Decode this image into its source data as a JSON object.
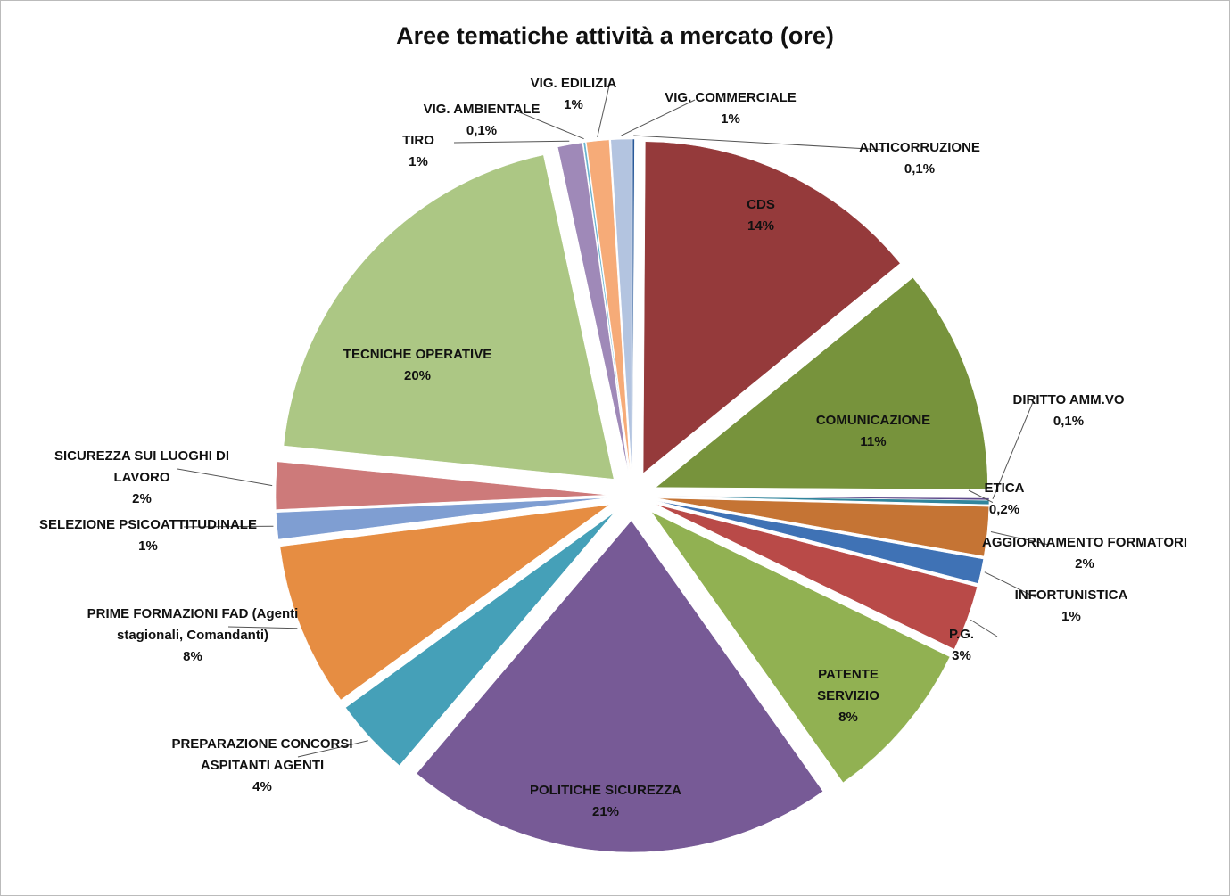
{
  "chart_data": {
    "type": "pie",
    "title": "Aree tematiche attività a mercato (ore)",
    "categories": [
      "ANTICORRUZIONE",
      "CDS",
      "COMUNICAZIONE",
      "DIRITTO AMM.VO",
      "ETICA",
      "AGGIORNAMENTO FORMATORI",
      "INFORTUNISTICA",
      "P.G.",
      "PATENTE SERVIZIO",
      "POLITICHE SICUREZZA",
      "PREPARAZIONE CONCORSI ASPITANTI AGENTI",
      "PRIME FORMAZIONI FAD (Agenti stagionali, Comandanti)",
      "SELEZIONE PSICOATTITUDINALE",
      "SICUREZZA SUI LUOGHI DI LAVORO",
      "TECNICHE OPERATIVE",
      "TIRO",
      "VIG. AMBIENTALE",
      "VIG. EDILIZIA",
      "VIG. COMMERCIALE"
    ],
    "values": [
      0.1,
      14,
      11,
      0.1,
      0.2,
      2.4,
      1.2,
      3.2,
      8,
      21,
      3.8,
      8,
      1.3,
      2.3,
      20,
      1.2,
      0.1,
      1.1,
      1.0
    ],
    "value_labels": [
      "0,1%",
      "14%",
      "11%",
      "0,1%",
      "0,2%",
      "2%",
      "1%",
      "3%",
      "8%",
      "21%",
      "4%",
      "8%",
      "1%",
      "2%",
      "20%",
      "1%",
      "0,1%",
      "1%",
      "1%"
    ],
    "colors": [
      "#2a5a9a",
      "#953a3b",
      "#77933c",
      "#5f4a8b",
      "#31859c",
      "#c57434",
      "#3f72b5",
      "#b94a48",
      "#91b152",
      "#775a96",
      "#45a0b8",
      "#e68d42",
      "#7f9ed2",
      "#cd7a7a",
      "#acc784",
      "#9f89b8",
      "#6bb4cf",
      "#f6ab78",
      "#b3c4e0"
    ]
  }
}
